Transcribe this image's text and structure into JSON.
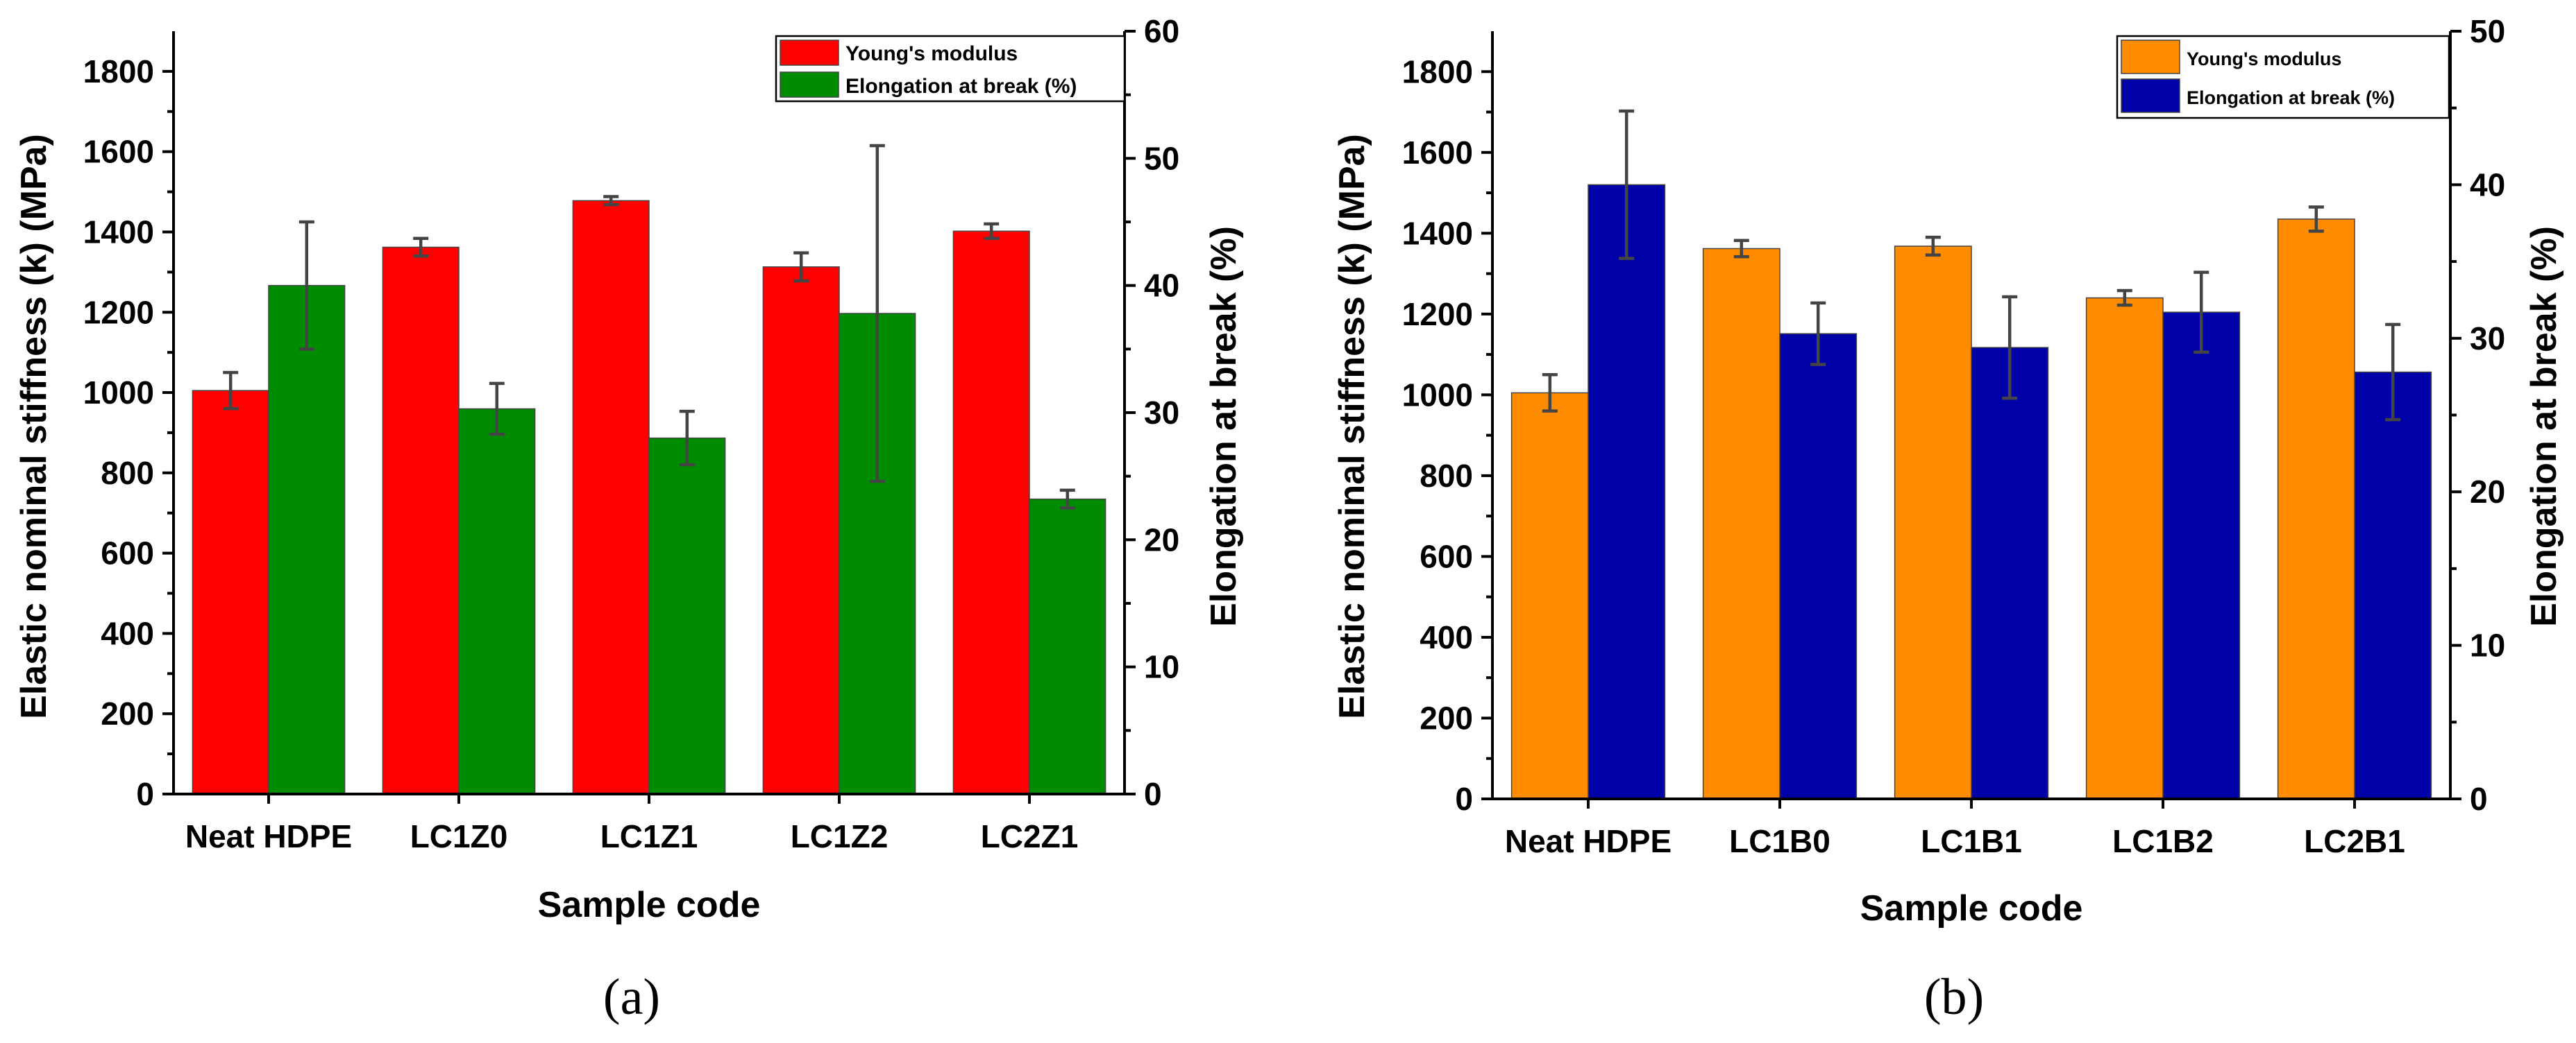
{
  "chart_data": [
    {
      "type": "bar",
      "panel_label": "(a)",
      "categories": [
        "Neat HDPE",
        "LC1Z0",
        "LC1Z1",
        "LC1Z2",
        "LC2Z1"
      ],
      "xlabel": "Sample code",
      "ylabel": "Elastic nominal stiffness (k) (MPa)",
      "y2label": "Elongation at break (%)",
      "ylim": [
        0,
        1900
      ],
      "y2lim": [
        0,
        60
      ],
      "yticks": [
        "0",
        "200",
        "400",
        "600",
        "800",
        "1000",
        "1200",
        "1400",
        "1600",
        "1800"
      ],
      "y2ticks": [
        "0",
        "10",
        "20",
        "30",
        "40",
        "50",
        "60"
      ],
      "legend_position": "top-right",
      "series": [
        {
          "name": "Young's modulus",
          "axis": "left",
          "color": "#ff0000",
          "values": [
            1005,
            1362,
            1478,
            1313,
            1402
          ],
          "errors": [
            45,
            22,
            10,
            35,
            18
          ]
        },
        {
          "name": "Elongation at break (%)",
          "axis": "right",
          "color": "#008c00",
          "values": [
            40.0,
            30.3,
            28.0,
            37.8,
            23.2
          ],
          "errors": [
            5.0,
            2.0,
            2.1,
            13.2,
            0.7
          ]
        }
      ]
    },
    {
      "type": "bar",
      "panel_label": "(b)",
      "categories": [
        "Neat HDPE",
        "LC1B0",
        "LC1B1",
        "LC1B2",
        "LC2B1"
      ],
      "xlabel": "Sample code",
      "ylabel": "Elastic nominal stiffness (k) (MPa)",
      "y2label": "Elongation at break (%)",
      "ylim": [
        0,
        1900
      ],
      "y2lim": [
        0,
        50
      ],
      "yticks": [
        "0",
        "200",
        "400",
        "600",
        "800",
        "1000",
        "1200",
        "1400",
        "1600",
        "1800"
      ],
      "y2ticks": [
        "0",
        "10",
        "20",
        "30",
        "40",
        "50"
      ],
      "legend_position": "top-right",
      "series": [
        {
          "name": "Young's modulus",
          "axis": "left",
          "color": "#ff8c00",
          "values": [
            1005,
            1362,
            1368,
            1240,
            1435
          ],
          "errors": [
            45,
            20,
            22,
            18,
            30
          ]
        },
        {
          "name": "Elongation at break (%)",
          "axis": "right",
          "color": "#0000a8",
          "values": [
            40.0,
            30.3,
            29.4,
            31.7,
            27.8
          ],
          "errors": [
            4.8,
            2.0,
            3.3,
            2.6,
            3.1
          ]
        }
      ]
    }
  ]
}
